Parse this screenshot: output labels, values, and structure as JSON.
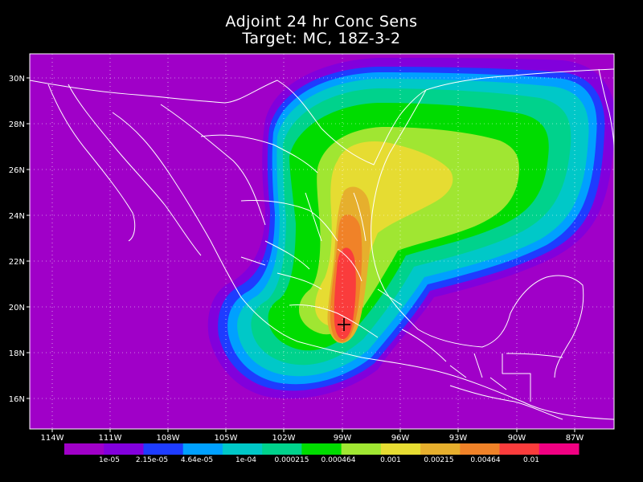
{
  "title": "Adjoint 24 hr Conc Sens",
  "subtitle": "Target: MC, 18Z-3-2",
  "map": {
    "lon_range": [
      -115.5,
      -85.5
    ],
    "lat_range": [
      14.8,
      31.2
    ],
    "lon_ticks": [
      "114W",
      "111W",
      "108W",
      "105W",
      "102W",
      "99W",
      "96W",
      "93W",
      "90W",
      "87W"
    ],
    "lat_ticks": [
      "30N",
      "28N",
      "26N",
      "24N",
      "22N",
      "20N",
      "18N",
      "16N"
    ],
    "target_marker": {
      "symbol": "plus-icon",
      "lon": -99.1,
      "lat": 19.3
    },
    "grid": true
  },
  "colorbar": {
    "colors": [
      "#a000c8",
      "#8200dc",
      "#1e3cff",
      "#00a0ff",
      "#00c8c8",
      "#00d28c",
      "#00dc00",
      "#a0e632",
      "#e6dc32",
      "#e6af2d",
      "#f08228",
      "#fa3c3c",
      "#f00082"
    ],
    "labels": [
      "1e-05",
      "2.15e-05",
      "4.64e-05",
      "1e-04",
      "0.000215",
      "0.000464",
      "0.001",
      "0.00215",
      "0.00464",
      "0.01"
    ]
  }
}
